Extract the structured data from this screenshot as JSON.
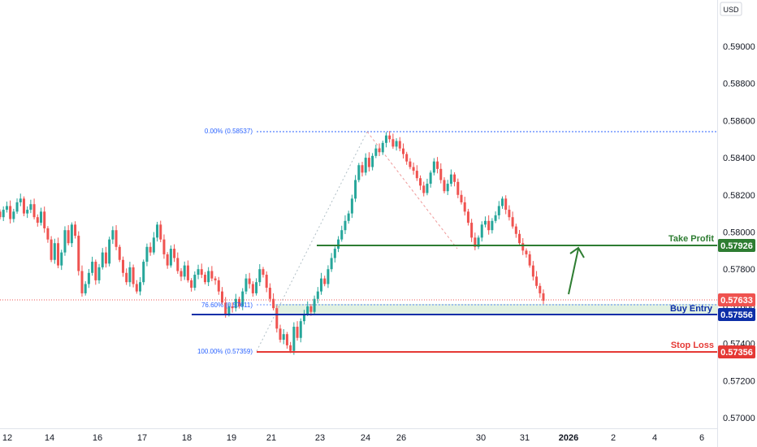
{
  "chart_data": {
    "type": "candlestick",
    "currency": "USD",
    "ylim": [
      0.5695,
      0.591
    ],
    "y_ticks": [
      "0.57000",
      "0.57200",
      "0.57400",
      "0.57600",
      "0.57800",
      "0.58000",
      "0.58200",
      "0.58400",
      "0.58600",
      "0.58800",
      "0.59000"
    ],
    "x_ticks": [
      "12",
      "14",
      "16",
      "17",
      "18",
      "19",
      "21",
      "23",
      "24",
      "26",
      "30",
      "31",
      "2026",
      "2",
      "4",
      "6"
    ],
    "current_price": "0.57633",
    "fib_levels": [
      {
        "label": "0.00% (0.58537)",
        "value": 0.58537
      },
      {
        "label": "76.60% (0.57611)",
        "value": 0.57611
      },
      {
        "label": "100.00% (0.57359)",
        "value": 0.57359
      }
    ],
    "levels": {
      "take_profit": {
        "label": "Take Profit",
        "value": "0.57926",
        "color": "#2e7d32"
      },
      "buy_entry": {
        "label": "Buy Entry",
        "value": "0.57556",
        "color": "#0d2fa8"
      },
      "stop_loss": {
        "label": "Stop Loss",
        "value": "0.57356",
        "color": "#e53935"
      }
    },
    "colors": {
      "up": "#26a69a",
      "down": "#ef5350"
    },
    "price_path": [
      0.5808,
      0.5812,
      0.5814,
      0.5807,
      0.5811,
      0.5816,
      0.5818,
      0.581,
      0.5812,
      0.5815,
      0.5808,
      0.5805,
      0.5811,
      0.5802,
      0.5796,
      0.5785,
      0.5794,
      0.5782,
      0.5789,
      0.5801,
      0.5794,
      0.5804,
      0.5798,
      0.5779,
      0.5767,
      0.5772,
      0.5778,
      0.5784,
      0.5774,
      0.5781,
      0.5789,
      0.5783,
      0.5796,
      0.5801,
      0.5792,
      0.5785,
      0.5778,
      0.5773,
      0.5781,
      0.5772,
      0.5768,
      0.5773,
      0.5784,
      0.5792,
      0.5789,
      0.5797,
      0.5804,
      0.5796,
      0.5788,
      0.5782,
      0.5791,
      0.5786,
      0.5779,
      0.5776,
      0.5782,
      0.5774,
      0.577,
      0.5777,
      0.578,
      0.5777,
      0.5773,
      0.5779,
      0.5775,
      0.5774,
      0.5768,
      0.5762,
      0.5756,
      0.576,
      0.5759,
      0.5764,
      0.576,
      0.5768,
      0.5775,
      0.5772,
      0.5767,
      0.5773,
      0.578,
      0.5777,
      0.577,
      0.5764,
      0.5759,
      0.5748,
      0.5742,
      0.5745,
      0.5739,
      0.5736,
      0.5749,
      0.5743,
      0.5752,
      0.5756,
      0.576,
      0.5757,
      0.5764,
      0.5768,
      0.5775,
      0.5772,
      0.578,
      0.5786,
      0.5791,
      0.5796,
      0.5801,
      0.5806,
      0.581,
      0.5818,
      0.5828,
      0.5836,
      0.5832,
      0.584,
      0.5835,
      0.5841,
      0.5845,
      0.5843,
      0.5848,
      0.5852,
      0.585,
      0.5846,
      0.5849,
      0.5845,
      0.5842,
      0.5838,
      0.5835,
      0.5833,
      0.5829,
      0.5825,
      0.5821,
      0.5826,
      0.5832,
      0.5838,
      0.5834,
      0.5828,
      0.5822,
      0.5826,
      0.5831,
      0.5827,
      0.582,
      0.5816,
      0.5811,
      0.5805,
      0.5797,
      0.5792,
      0.5797,
      0.5804,
      0.5806,
      0.5801,
      0.5806,
      0.5809,
      0.5814,
      0.5818,
      0.5812,
      0.5808,
      0.5803,
      0.5799,
      0.5794,
      0.579,
      0.5788,
      0.5782,
      0.5776,
      0.5771,
      0.5767,
      0.5763
    ]
  }
}
